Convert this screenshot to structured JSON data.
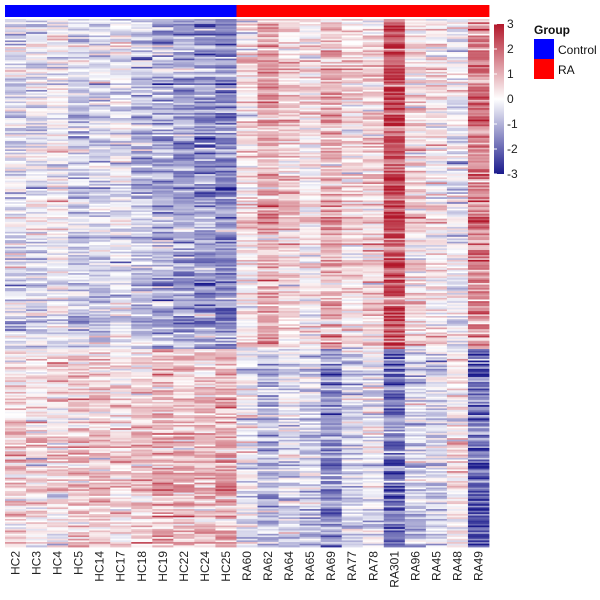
{
  "chart_data": {
    "type": "heatmap",
    "columns": [
      "HC2",
      "HC3",
      "HC4",
      "HC5",
      "HC14",
      "HC17",
      "HC18",
      "HC19",
      "HC22",
      "HC24",
      "HC25",
      "RA60",
      "RA62",
      "RA64",
      "RA65",
      "RA69",
      "RA77",
      "RA78",
      "RA301",
      "RA96",
      "RA45",
      "RA48",
      "RA49"
    ],
    "column_groups": [
      "Control",
      "Control",
      "Control",
      "Control",
      "Control",
      "Control",
      "Control",
      "Control",
      "Control",
      "Control",
      "Control",
      "RA",
      "RA",
      "RA",
      "RA",
      "RA",
      "RA",
      "RA",
      "RA",
      "RA",
      "RA",
      "RA",
      "RA"
    ],
    "group_legend": {
      "title": "Group",
      "entries": [
        {
          "label": "Control",
          "color": "#0000FF"
        },
        {
          "label": "RA",
          "color": "#FF0000"
        }
      ]
    },
    "color_scale": {
      "min": -3,
      "max": 3,
      "ticks": [
        3,
        2,
        1,
        0,
        -1,
        -2,
        -3
      ],
      "low_color": "#1A1A8C",
      "mid_color": "#FFFFFF",
      "high_color": "#B2182B"
    },
    "row_blocks": [
      {
        "name": "upregulated-in-RA",
        "n_rows": 200,
        "mean_z": [
          -0.4,
          -0.3,
          -0.1,
          -0.6,
          -0.5,
          -0.3,
          -0.8,
          -1.0,
          -1.1,
          -1.2,
          -1.4,
          0.3,
          1.1,
          0.6,
          0.2,
          1.0,
          0.4,
          0.5,
          2.2,
          0.5,
          0.2,
          -0.2,
          1.6
        ]
      },
      {
        "name": "downregulated-in-RA",
        "n_rows": 120,
        "mean_z": [
          0.5,
          0.3,
          0.4,
          0.7,
          0.6,
          0.5,
          0.6,
          1.0,
          0.9,
          0.7,
          1.1,
          -0.2,
          -0.9,
          -0.4,
          -0.6,
          -1.4,
          -0.5,
          -0.3,
          -1.8,
          -0.6,
          -0.5,
          0.3,
          -2.0
        ]
      }
    ]
  }
}
